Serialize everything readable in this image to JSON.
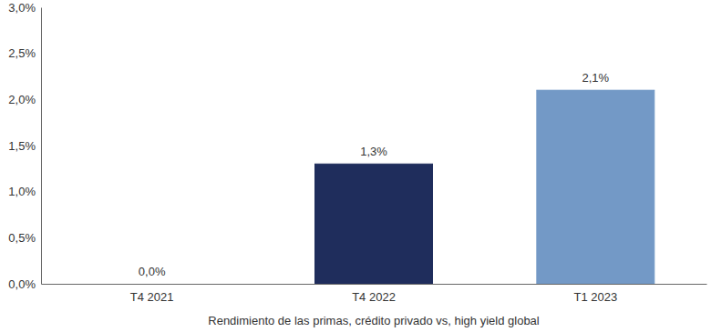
{
  "chart_data": {
    "type": "bar",
    "xlabel": "Rendimiento de las primas, crédito privado vs, high yield global",
    "categories": [
      "T4 2021",
      "T4 2022",
      "T1 2023"
    ],
    "values": [
      0.0,
      1.3,
      2.1
    ],
    "value_labels": [
      "0,0%",
      "1,3%",
      "2,1%"
    ],
    "colors": [
      "#1f2d5c",
      "#1f2d5c",
      "#7399c6"
    ],
    "ylim": [
      0,
      3
    ],
    "yticks": [
      {
        "value": 0,
        "label": "0,0%"
      },
      {
        "value": 0.5,
        "label": "0,5%"
      },
      {
        "value": 1,
        "label": "1,0%"
      },
      {
        "value": 1.5,
        "label": "1,5%"
      },
      {
        "value": 2,
        "label": "2,0%"
      },
      {
        "value": 2.5,
        "label": "2,5%"
      },
      {
        "value": 3,
        "label": "3,0%"
      }
    ],
    "data_labels": true
  }
}
